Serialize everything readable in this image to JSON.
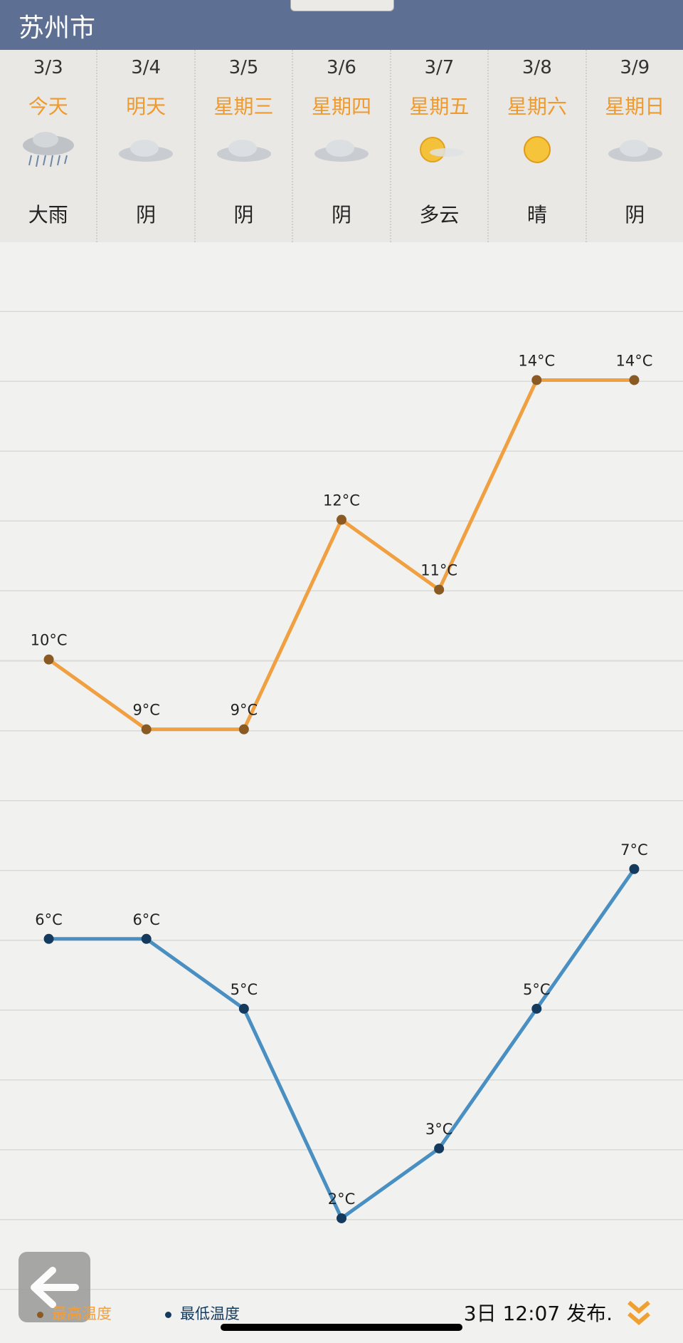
{
  "header": {
    "city": "苏州市"
  },
  "days": [
    {
      "date": "3/3",
      "weekday": "今天",
      "weather": "大雨"
    },
    {
      "date": "3/4",
      "weekday": "明天",
      "weather": "阴"
    },
    {
      "date": "3/5",
      "weekday": "星期三",
      "weather": "阴"
    },
    {
      "date": "3/6",
      "weekday": "星期四",
      "weather": "阴"
    },
    {
      "date": "3/7",
      "weekday": "星期五",
      "weather": "多云"
    },
    {
      "date": "3/8",
      "weekday": "星期六",
      "weather": "晴"
    },
    {
      "date": "3/9",
      "weekday": "星期日",
      "weather": "阴"
    }
  ],
  "chart_data": {
    "type": "line",
    "ylim": [
      1,
      16
    ],
    "series": [
      {
        "name": "最高温度",
        "color": "#f0a040",
        "point_color": "#8a5a22",
        "values": [
          10,
          9,
          9,
          12,
          11,
          14,
          14
        ],
        "value_labels": [
          "10°C",
          "9°C",
          "9°C",
          "12°C",
          "11°C",
          "14°C",
          "14°C"
        ]
      },
      {
        "name": "最低温度",
        "color": "#4a8fc2",
        "point_color": "#143a5e",
        "values": [
          6,
          6,
          5,
          2,
          3,
          5,
          7
        ],
        "value_labels": [
          "6°C",
          "6°C",
          "5°C",
          "2°C",
          "3°C",
          "5°C",
          "7°C"
        ]
      }
    ]
  },
  "footer": {
    "published": "3日 12:07 发布."
  }
}
